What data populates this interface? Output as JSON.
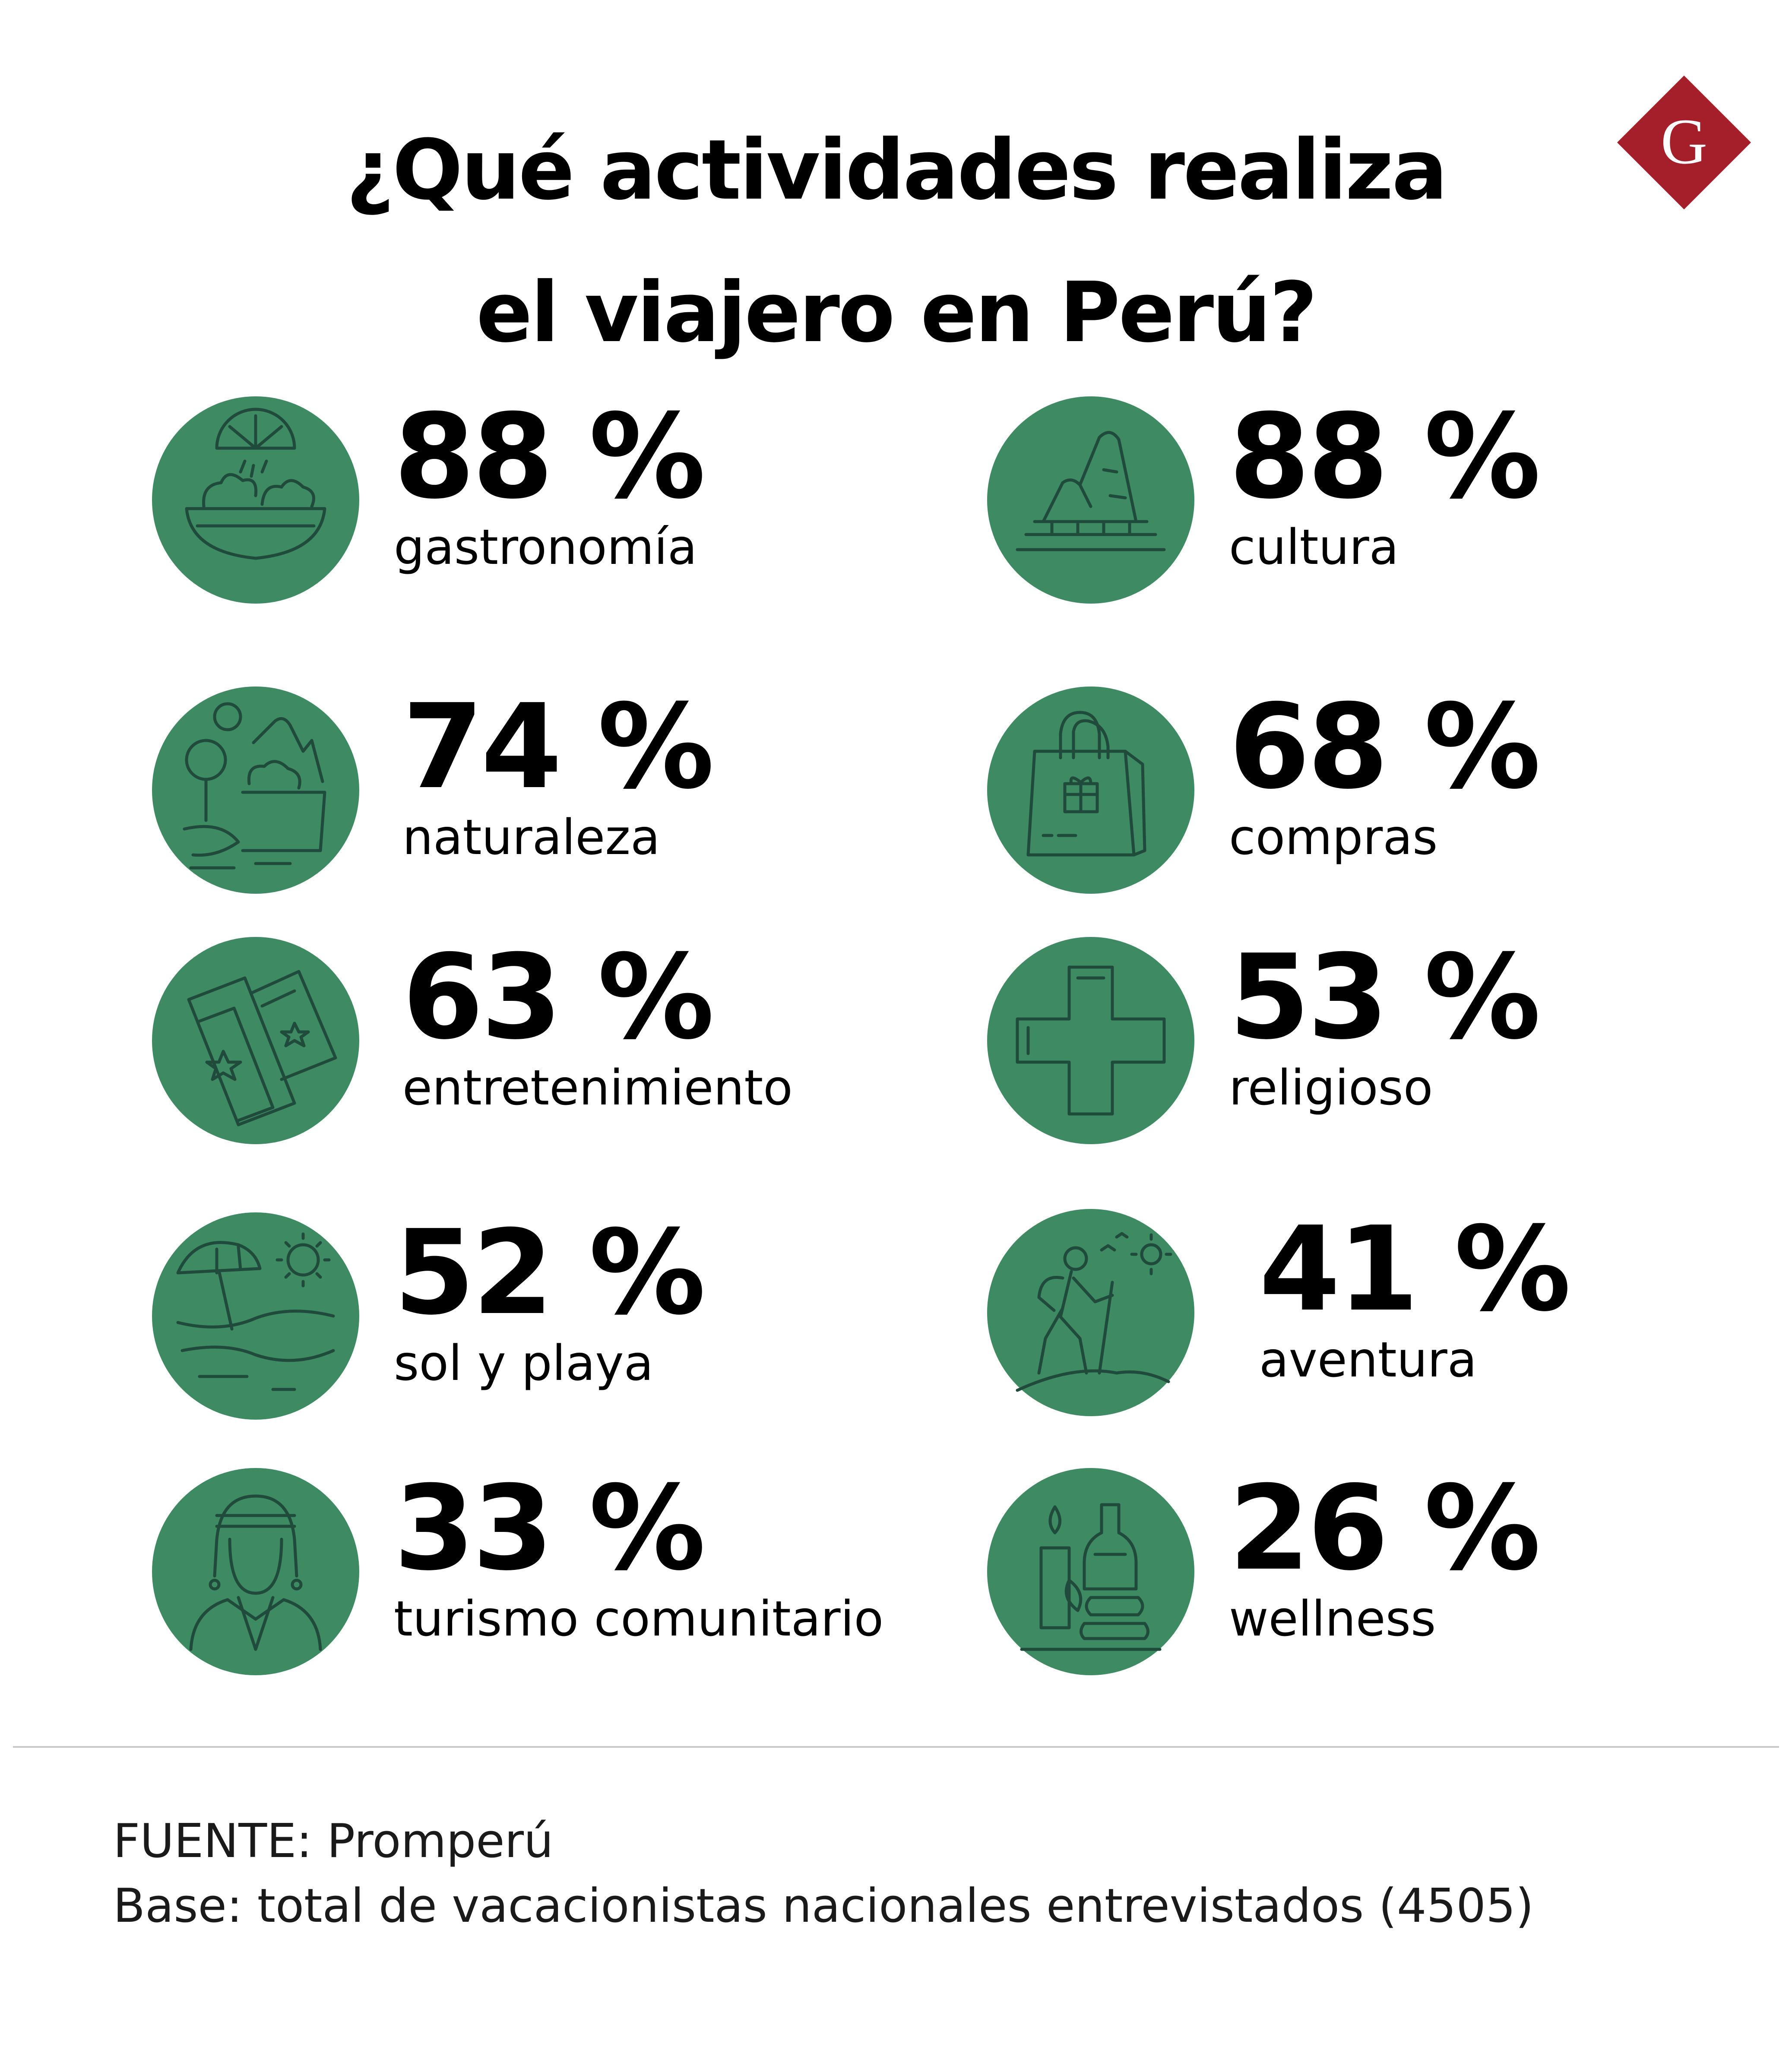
{
  "title": {
    "line1": "¿Qué actividades realiza",
    "line2": "el viajero en Perú?"
  },
  "logo": {
    "letter": "G",
    "color": "#a51f2b"
  },
  "colors": {
    "circle": "#3e8a63",
    "icon_stroke": "#1f4a3c"
  },
  "chart_data": {
    "type": "table",
    "title": "¿Qué actividades realiza el viajero en Perú?",
    "unit": "%",
    "items": [
      {
        "label": "gastronomía",
        "value": 88,
        "display": "88 %",
        "icon": "food-bowl-icon"
      },
      {
        "label": "cultura",
        "value": 88,
        "display": "88 %",
        "icon": "machu-picchu-icon"
      },
      {
        "label": "naturaleza",
        "value": 74,
        "display": "74 %",
        "icon": "nature-landscape-icon"
      },
      {
        "label": "compras",
        "value": 68,
        "display": "68 %",
        "icon": "shopping-bag-icon"
      },
      {
        "label": "entretenimiento",
        "value": 63,
        "display": "63 %",
        "icon": "tickets-icon"
      },
      {
        "label": "religioso",
        "value": 53,
        "display": "53 %",
        "icon": "cross-icon"
      },
      {
        "label": "sol y playa",
        "value": 52,
        "display": "52 %",
        "icon": "beach-umbrella-icon"
      },
      {
        "label": "aventura",
        "value": 41,
        "display": "41 %",
        "icon": "hiker-icon"
      },
      {
        "label": "turismo comunitario",
        "value": 33,
        "display": "33 %",
        "icon": "andean-person-icon"
      },
      {
        "label": "wellness",
        "value": 26,
        "display": "26 %",
        "icon": "spa-candle-icon"
      }
    ]
  },
  "footer": {
    "source": "FUENTE: Promperú",
    "base": "Base: total de vacacionistas nacionales entrevistados (4505)"
  }
}
